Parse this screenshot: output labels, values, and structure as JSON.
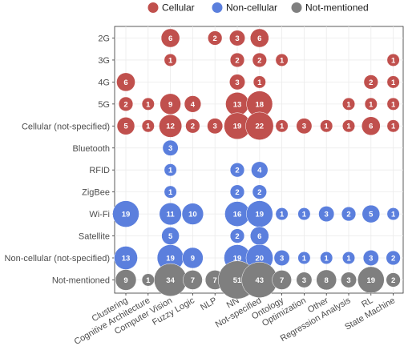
{
  "chart_data": {
    "type": "bubble",
    "legend": {
      "placement": "top",
      "entries": [
        {
          "name": "Cellular",
          "color": "#c0504d"
        },
        {
          "name": "Non-cellular",
          "color": "#5b7fdd"
        },
        {
          "name": "Not-mentioned",
          "color": "#7f7f7f"
        }
      ]
    },
    "grid": true,
    "x_categories": [
      "Clustering",
      "Cognitive Architecture",
      "Computer Vision",
      "Fuzzy Logic",
      "NLP",
      "NN",
      "Not-specified",
      "Ontology",
      "Optimization",
      "Other",
      "Regression Analysis",
      "RL",
      "State Machine"
    ],
    "y_categories": [
      "2G",
      "3G",
      "4G",
      "5G",
      "Cellular (not-specified)",
      "Bluetooth",
      "RFID",
      "ZigBee",
      "Wi-Fi",
      "Satellite",
      "Non-cellular (not-specified)",
      "Not-mentioned"
    ],
    "rows": [
      {
        "y": "2G",
        "group": "Cellular",
        "values": [
          null,
          null,
          6,
          null,
          2,
          3,
          6,
          null,
          null,
          null,
          null,
          null,
          null
        ]
      },
      {
        "y": "3G",
        "group": "Cellular",
        "values": [
          null,
          null,
          1,
          null,
          null,
          2,
          2,
          1,
          null,
          null,
          null,
          null,
          1
        ]
      },
      {
        "y": "4G",
        "group": "Cellular",
        "values": [
          6,
          null,
          null,
          null,
          null,
          3,
          1,
          null,
          null,
          null,
          null,
          2,
          1
        ]
      },
      {
        "y": "5G",
        "group": "Cellular",
        "values": [
          2,
          1,
          9,
          4,
          null,
          13,
          18,
          null,
          null,
          null,
          1,
          1,
          1
        ]
      },
      {
        "y": "Cellular (not-specified)",
        "group": "Cellular",
        "values": [
          5,
          1,
          12,
          2,
          3,
          19,
          22,
          1,
          3,
          1,
          1,
          6,
          1
        ]
      },
      {
        "y": "Bluetooth",
        "group": "Non-cellular",
        "values": [
          null,
          null,
          3,
          null,
          null,
          null,
          null,
          null,
          null,
          null,
          null,
          null,
          null
        ]
      },
      {
        "y": "RFID",
        "group": "Non-cellular",
        "values": [
          null,
          null,
          1,
          null,
          null,
          2,
          4,
          null,
          null,
          null,
          null,
          null,
          null
        ]
      },
      {
        "y": "ZigBee",
        "group": "Non-cellular",
        "values": [
          null,
          null,
          1,
          null,
          null,
          2,
          2,
          null,
          null,
          null,
          null,
          null,
          null
        ]
      },
      {
        "y": "Wi-Fi",
        "group": "Non-cellular",
        "values": [
          19,
          null,
          11,
          10,
          null,
          16,
          19,
          1,
          1,
          3,
          2,
          5,
          1
        ]
      },
      {
        "y": "Satellite",
        "group": "Non-cellular",
        "values": [
          null,
          null,
          5,
          null,
          null,
          2,
          6,
          null,
          null,
          null,
          null,
          null,
          null
        ]
      },
      {
        "y": "Non-cellular (not-specified)",
        "group": "Non-cellular",
        "values": [
          13,
          null,
          19,
          9,
          null,
          19,
          20,
          3,
          1,
          1,
          1,
          3,
          2
        ]
      },
      {
        "y": "Not-mentioned",
        "group": "Not-mentioned",
        "values": [
          9,
          1,
          34,
          7,
          7,
          51,
          43,
          7,
          3,
          8,
          3,
          19,
          2
        ]
      }
    ]
  }
}
